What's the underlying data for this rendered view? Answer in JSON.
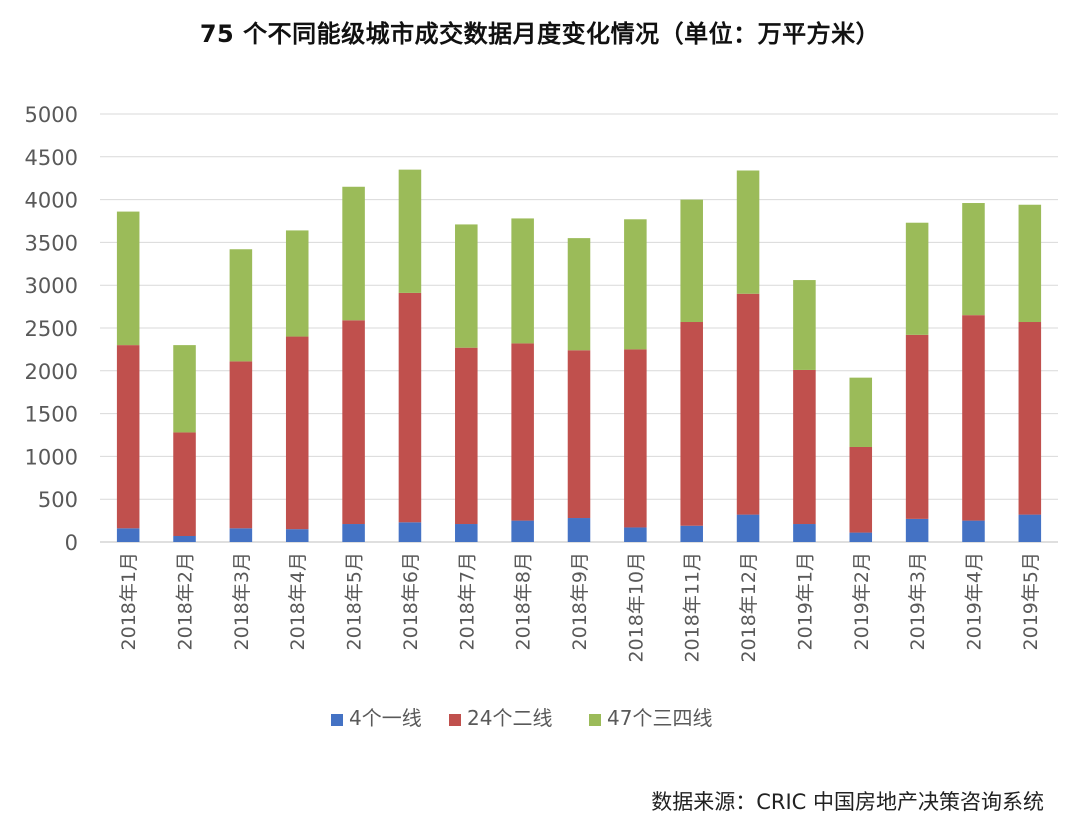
{
  "title": "75 个不同能级城市成交数据月度变化情况（单位：万平方米）",
  "source": "数据来源：CRIC 中国房地产决策咨询系统",
  "colors": {
    "tier1": "#4472C4",
    "tier2": "#C0504D",
    "tier34": "#9BBB59",
    "grid": "#D9D9D9",
    "axis_text": "#595959"
  },
  "chart_data": {
    "type": "bar",
    "stacked": true,
    "categories": [
      "2018年1月",
      "2018年2月",
      "2018年3月",
      "2018年4月",
      "2018年5月",
      "2018年6月",
      "2018年7月",
      "2018年8月",
      "2018年9月",
      "2018年10月",
      "2018年11月",
      "2018年12月",
      "2019年1月",
      "2019年2月",
      "2019年3月",
      "2019年4月",
      "2019年5月"
    ],
    "series": [
      {
        "name": "4个一线",
        "color": "#4472C4",
        "values": [
          160,
          70,
          160,
          150,
          210,
          230,
          210,
          250,
          280,
          170,
          190,
          320,
          210,
          110,
          270,
          250,
          320
        ]
      },
      {
        "name": "24个二线",
        "color": "#C0504D",
        "values": [
          2140,
          1210,
          1950,
          2250,
          2380,
          2680,
          2060,
          2070,
          1960,
          2080,
          2380,
          2580,
          1800,
          1000,
          2150,
          2400,
          2250
        ]
      },
      {
        "name": "47个三四线",
        "color": "#9BBB59",
        "values": [
          1560,
          1020,
          1310,
          1240,
          1560,
          1440,
          1440,
          1460,
          1310,
          1520,
          1430,
          1440,
          1050,
          810,
          1310,
          1310,
          1370
        ]
      }
    ],
    "ylim": [
      0,
      5000
    ],
    "yticks": [
      0,
      500,
      1000,
      1500,
      2000,
      2500,
      3000,
      3500,
      4000,
      4500,
      5000
    ],
    "grid": true,
    "legend": "bottom"
  }
}
